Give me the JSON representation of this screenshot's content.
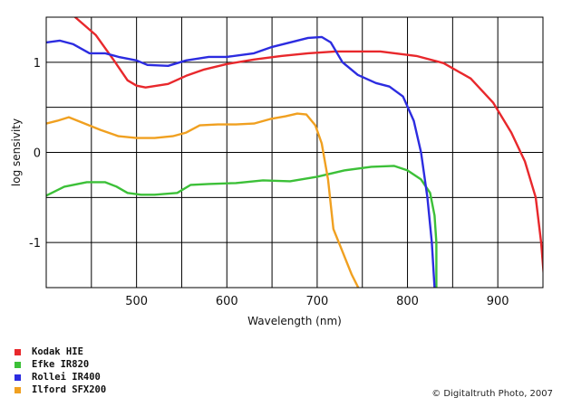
{
  "chart_data": {
    "type": "line",
    "title": "",
    "xlabel": "Wavelength (nm)",
    "ylabel": "log sensivity",
    "xlim": [
      400,
      950
    ],
    "ylim": [
      -1.5,
      1.5
    ],
    "x_ticks": [
      500,
      600,
      700,
      800,
      900
    ],
    "x_tick_labels": [
      "500",
      "600",
      "700",
      "800",
      "900"
    ],
    "y_ticks": [
      1,
      0,
      -1
    ],
    "y_tick_labels": [
      "1",
      "0",
      "-1"
    ],
    "grid": true,
    "legend_position": "bottom-left",
    "series": [
      {
        "name": "Kodak HIE",
        "color": "#e8282c",
        "points": [
          [
            432,
            1.5
          ],
          [
            455,
            1.3
          ],
          [
            475,
            1.02
          ],
          [
            490,
            0.8
          ],
          [
            500,
            0.74
          ],
          [
            510,
            0.72
          ],
          [
            535,
            0.76
          ],
          [
            555,
            0.85
          ],
          [
            575,
            0.92
          ],
          [
            600,
            0.98
          ],
          [
            630,
            1.03
          ],
          [
            660,
            1.07
          ],
          [
            690,
            1.1
          ],
          [
            720,
            1.12
          ],
          [
            770,
            1.12
          ],
          [
            810,
            1.07
          ],
          [
            840,
            0.99
          ],
          [
            870,
            0.82
          ],
          [
            895,
            0.55
          ],
          [
            915,
            0.22
          ],
          [
            930,
            -0.1
          ],
          [
            942,
            -0.5
          ],
          [
            948,
            -1.0
          ],
          [
            952,
            -1.5
          ]
        ]
      },
      {
        "name": "Efke IR820",
        "color": "#3cc038",
        "points": [
          [
            400,
            -0.48
          ],
          [
            420,
            -0.38
          ],
          [
            445,
            -0.33
          ],
          [
            465,
            -0.33
          ],
          [
            478,
            -0.38
          ],
          [
            490,
            -0.45
          ],
          [
            505,
            -0.47
          ],
          [
            520,
            -0.47
          ],
          [
            545,
            -0.45
          ],
          [
            560,
            -0.36
          ],
          [
            580,
            -0.35
          ],
          [
            610,
            -0.34
          ],
          [
            640,
            -0.31
          ],
          [
            670,
            -0.32
          ],
          [
            700,
            -0.27
          ],
          [
            730,
            -0.2
          ],
          [
            760,
            -0.16
          ],
          [
            785,
            -0.15
          ],
          [
            800,
            -0.2
          ],
          [
            815,
            -0.3
          ],
          [
            825,
            -0.45
          ],
          [
            830,
            -0.7
          ],
          [
            832,
            -1.0
          ],
          [
            832,
            -1.5
          ]
        ]
      },
      {
        "name": "Rollei IR400",
        "color": "#2c2ce0",
        "points": [
          [
            400,
            1.22
          ],
          [
            415,
            1.24
          ],
          [
            430,
            1.2
          ],
          [
            448,
            1.1
          ],
          [
            465,
            1.1
          ],
          [
            480,
            1.06
          ],
          [
            500,
            1.02
          ],
          [
            512,
            0.97
          ],
          [
            535,
            0.96
          ],
          [
            555,
            1.02
          ],
          [
            580,
            1.06
          ],
          [
            600,
            1.06
          ],
          [
            630,
            1.1
          ],
          [
            650,
            1.17
          ],
          [
            670,
            1.22
          ],
          [
            690,
            1.27
          ],
          [
            705,
            1.28
          ],
          [
            715,
            1.22
          ],
          [
            728,
            1.0
          ],
          [
            745,
            0.86
          ],
          [
            765,
            0.77
          ],
          [
            780,
            0.73
          ],
          [
            795,
            0.62
          ],
          [
            807,
            0.35
          ],
          [
            815,
            0.0
          ],
          [
            822,
            -0.5
          ],
          [
            827,
            -1.0
          ],
          [
            830,
            -1.5
          ]
        ]
      },
      {
        "name": "Ilford SFX200",
        "color": "#f0a020",
        "points": [
          [
            400,
            0.32
          ],
          [
            412,
            0.35
          ],
          [
            425,
            0.39
          ],
          [
            440,
            0.33
          ],
          [
            460,
            0.25
          ],
          [
            480,
            0.18
          ],
          [
            500,
            0.16
          ],
          [
            520,
            0.16
          ],
          [
            540,
            0.18
          ],
          [
            555,
            0.22
          ],
          [
            570,
            0.3
          ],
          [
            590,
            0.31
          ],
          [
            610,
            0.31
          ],
          [
            630,
            0.32
          ],
          [
            648,
            0.37
          ],
          [
            665,
            0.4
          ],
          [
            678,
            0.43
          ],
          [
            688,
            0.42
          ],
          [
            698,
            0.3
          ],
          [
            705,
            0.1
          ],
          [
            712,
            -0.3
          ],
          [
            718,
            -0.85
          ],
          [
            728,
            -1.1
          ],
          [
            738,
            -1.35
          ],
          [
            748,
            -1.55
          ]
        ]
      }
    ]
  },
  "credit": "© Digitaltruth Photo, 2007"
}
